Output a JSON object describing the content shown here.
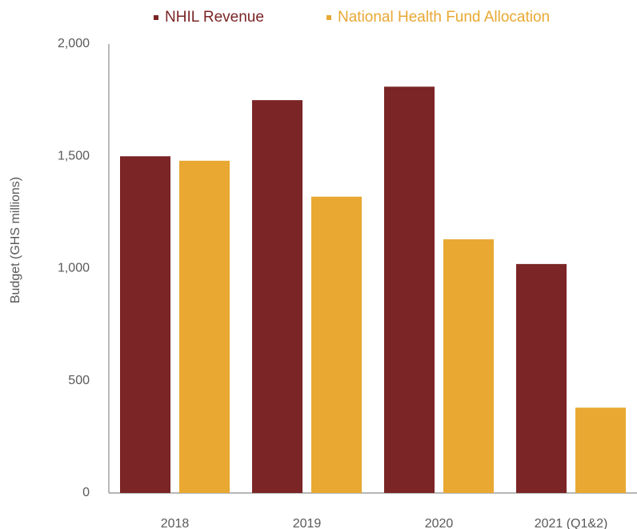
{
  "chart_data": {
    "type": "bar",
    "ylabel": "Budget (GHS millions)",
    "categories": [
      "2018",
      "2019",
      "2020",
      "2021 (Q1&2)"
    ],
    "series": [
      {
        "name": "NHIL Revenue",
        "color": "#7b2526",
        "values": [
          1500,
          1750,
          1810,
          1020
        ]
      },
      {
        "name": "National Health Fund Allocation",
        "color": "#e8a832",
        "values": [
          1480,
          1320,
          1130,
          380
        ]
      }
    ],
    "ylim": [
      0,
      2000
    ],
    "yticks": [
      0,
      500,
      {
        "value": 1000,
        "label": "1,000"
      },
      {
        "value": 1500,
        "label": "1,500"
      },
      {
        "value": 2000,
        "label": "2,000"
      }
    ],
    "grid": false
  }
}
